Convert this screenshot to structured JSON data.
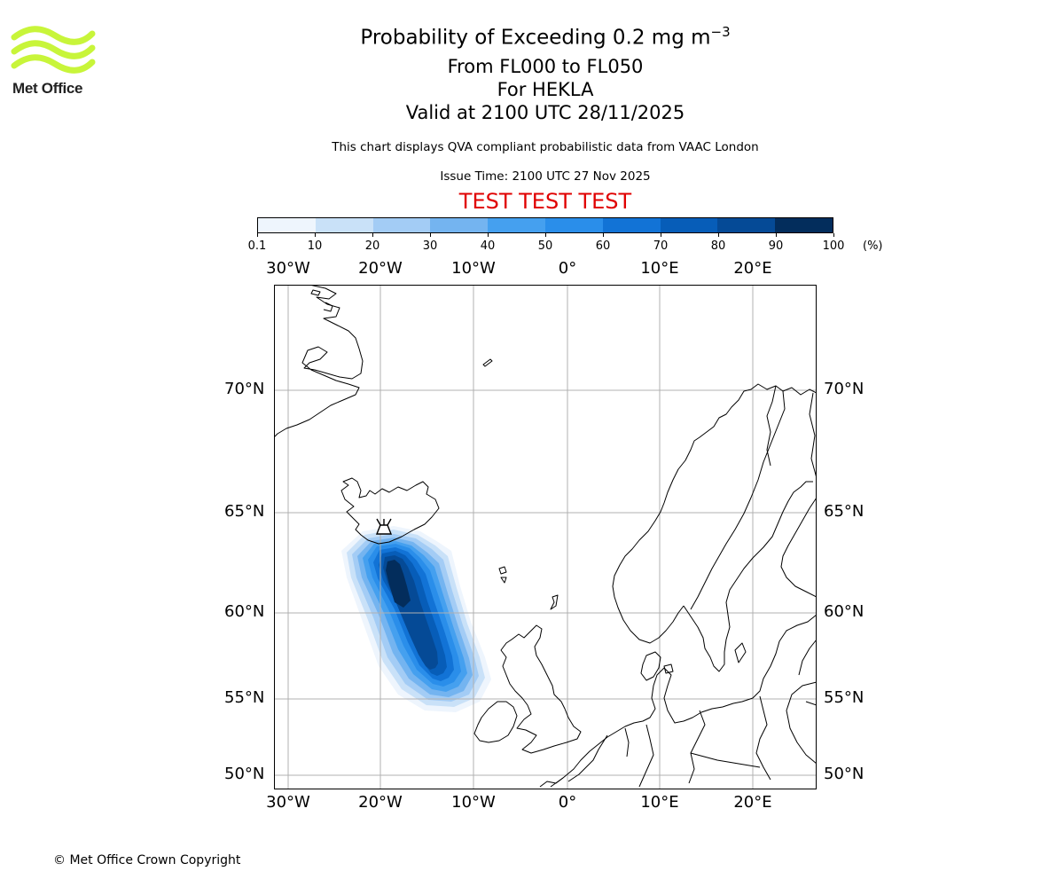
{
  "header": {
    "title_main": "Probability of Exceeding 0.2 mg m",
    "title_sup": "−3",
    "level_range": "From FL000 to FL050",
    "volcano": "For HEKLA",
    "valid_time": "Valid at 2100 UTC 28/11/2025",
    "note": "This chart displays QVA compliant probabilistic data from VAAC London",
    "issue_time": "Issue Time: 2100 UTC 27 Nov 2025",
    "test_banner": "TEST TEST TEST"
  },
  "logo": {
    "text": "Met Office",
    "color": "#c8f53a"
  },
  "colorbar": {
    "ticks": [
      "0.1",
      "10",
      "20",
      "30",
      "40",
      "50",
      "60",
      "70",
      "80",
      "90",
      "100"
    ],
    "unit": "(%)",
    "colors": [
      "#eef5fd",
      "#c9e1f8",
      "#a3ccf5",
      "#74b4f0",
      "#45a0ef",
      "#2a8eea",
      "#1273d6",
      "#075db8",
      "#054a96",
      "#032d5c"
    ]
  },
  "map": {
    "lon_labels": [
      "30°W",
      "20°W",
      "10°W",
      "0°",
      "10°E",
      "20°E"
    ],
    "lat_labels": [
      "70°N",
      "65°N",
      "60°N",
      "55°N",
      "50°N"
    ],
    "volcano_marker_icon": "volcano-icon"
  },
  "footer": {
    "copyright": "© Met Office Crown Copyright"
  }
}
